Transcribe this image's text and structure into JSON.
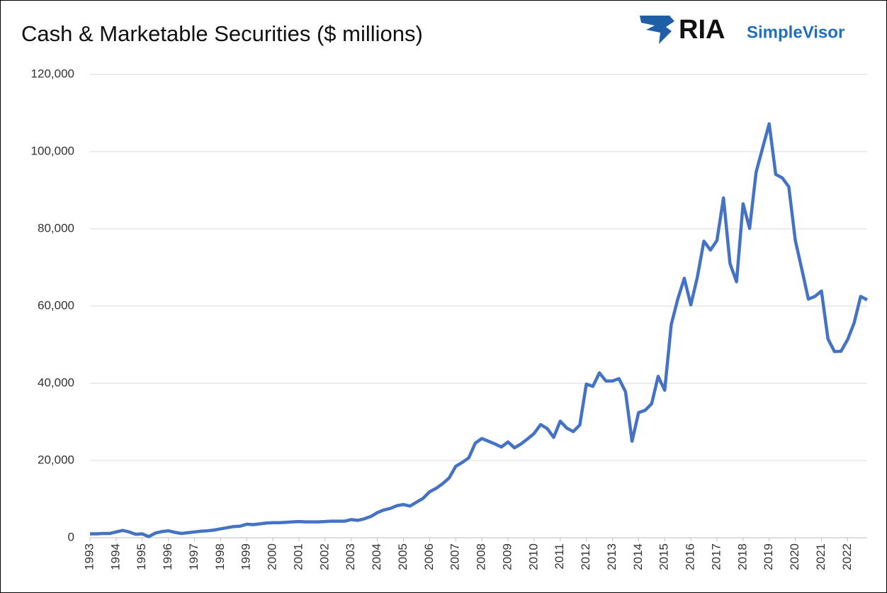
{
  "chart_data": {
    "type": "line",
    "title": "Cash & Marketable Securities ($ millions)",
    "brand": "RIA",
    "brand_sub": "SimpleVisor",
    "x": [
      1993,
      1993.25,
      1993.5,
      1993.75,
      1994,
      1994.25,
      1994.5,
      1994.75,
      1995,
      1995.25,
      1995.5,
      1995.75,
      1996,
      1996.25,
      1996.5,
      1996.75,
      1997,
      1997.25,
      1997.5,
      1997.75,
      1998,
      1998.25,
      1998.5,
      1998.75,
      1999,
      1999.25,
      1999.5,
      1999.75,
      2000,
      2000.25,
      2000.5,
      2000.75,
      2001,
      2001.25,
      2001.5,
      2001.75,
      2002,
      2002.25,
      2002.5,
      2002.75,
      2003,
      2003.25,
      2003.5,
      2003.75,
      2004,
      2004.25,
      2004.5,
      2004.75,
      2005,
      2005.25,
      2005.5,
      2005.75,
      2006,
      2006.25,
      2006.5,
      2006.75,
      2007,
      2007.25,
      2007.5,
      2007.75,
      2008,
      2008.25,
      2008.5,
      2008.75,
      2009,
      2009.25,
      2009.5,
      2009.75,
      2010,
      2010.25,
      2010.5,
      2010.75,
      2011,
      2011.25,
      2011.5,
      2011.75,
      2012,
      2012.25,
      2012.5,
      2012.75,
      2013,
      2013.25,
      2013.5,
      2013.75,
      2014,
      2014.25,
      2014.5,
      2014.75,
      2015,
      2015.25,
      2015.5,
      2015.75,
      2016,
      2016.25,
      2016.5,
      2016.75,
      2017,
      2017.25,
      2017.5,
      2017.75,
      2018,
      2018.25,
      2018.5,
      2018.75,
      2019,
      2019.25,
      2019.5,
      2019.75,
      2020,
      2020.25,
      2020.5,
      2020.75,
      2021,
      2021.25,
      2021.5,
      2021.75,
      2022,
      2022.25,
      2022.5,
      2022.75
    ],
    "series": [
      {
        "color": "#4472c4",
        "values": [
          1000,
          1000,
          1100,
          1100,
          1500,
          1900,
          1500,
          900,
          1000,
          300,
          1200,
          1600,
          1800,
          1400,
          1100,
          1300,
          1500,
          1700,
          1800,
          2000,
          2300,
          2600,
          2900,
          3000,
          3500,
          3400,
          3600,
          3800,
          3900,
          3900,
          4000,
          4100,
          4200,
          4100,
          4100,
          4100,
          4200,
          4300,
          4300,
          4300,
          4700,
          4500,
          4900,
          5500,
          6500,
          7200,
          7600,
          8300,
          8600,
          8200,
          9200,
          10200,
          11900,
          12800,
          14000,
          15500,
          18500,
          19500,
          20700,
          24500,
          25700,
          25000,
          24300,
          23500,
          24800,
          23300,
          24300,
          25600,
          27000,
          29300,
          28300,
          26000,
          30200,
          28400,
          27500,
          29200,
          39800,
          39200,
          42700,
          40600,
          40600,
          41200,
          37800,
          25000,
          32400,
          33000,
          34700,
          41800,
          38200,
          55200,
          61800,
          67200,
          60300,
          67500,
          76800,
          74500,
          77000,
          88000,
          71000,
          66300,
          86500,
          80100,
          94700,
          101000,
          107200,
          94100,
          93200,
          90900,
          77000,
          69500,
          61800,
          62500,
          63900,
          51500,
          48200,
          48300,
          51300,
          55600,
          62500,
          61600
        ]
      }
    ],
    "xlim": [
      1993,
      2022.75
    ],
    "xticks": [
      1993,
      1994,
      1995,
      1996,
      1997,
      1998,
      1999,
      2000,
      2001,
      2002,
      2003,
      2004,
      2005,
      2006,
      2007,
      2008,
      2009,
      2010,
      2011,
      2012,
      2013,
      2014,
      2015,
      2016,
      2017,
      2018,
      2019,
      2020,
      2021,
      2022
    ],
    "ylim": [
      0,
      120000
    ],
    "yticks": [
      0,
      {
        "value": 20000,
        "label": "20,000"
      },
      {
        "value": 40000,
        "label": "40,000"
      },
      {
        "value": 60000,
        "label": "60,000"
      },
      {
        "value": 80000,
        "label": "80,000"
      },
      {
        "value": 100000,
        "label": "100,000"
      },
      {
        "value": 120000,
        "label": "120,000"
      }
    ],
    "grid": true
  }
}
